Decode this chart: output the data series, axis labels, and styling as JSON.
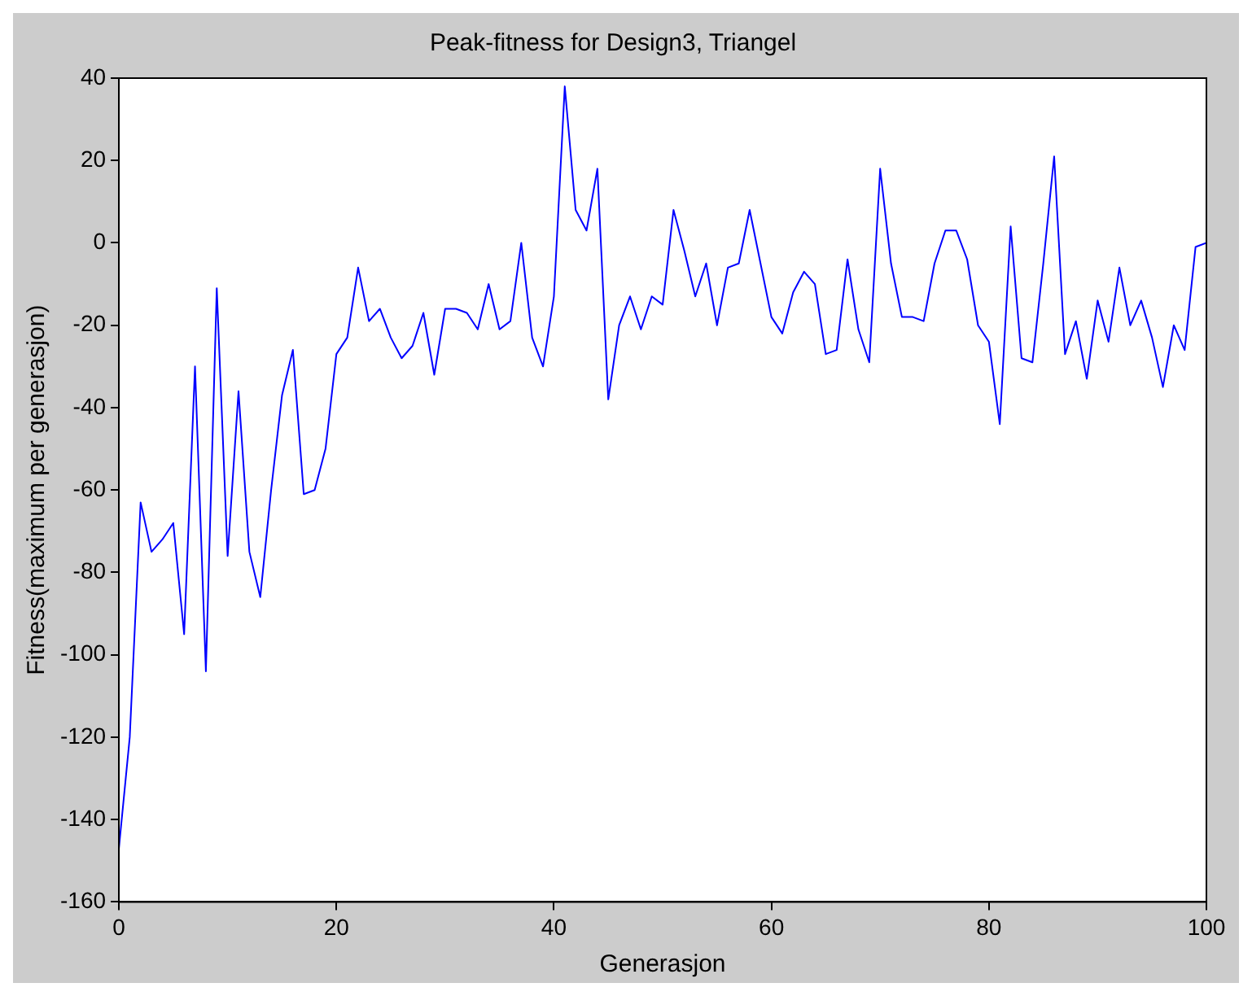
{
  "chart_data": {
    "type": "line",
    "title": "Peak-fitness for Design3, Triangel",
    "xlabel": "Generasjon",
    "ylabel": "Fitness(maximum per generasjon)",
    "xlim": [
      0,
      100
    ],
    "xticks": [
      0,
      20,
      40,
      60,
      80,
      100
    ],
    "ylim": [
      -160,
      40
    ],
    "yticks": [
      -160,
      -140,
      -120,
      -100,
      -80,
      -60,
      -40,
      -20,
      0,
      20,
      40
    ],
    "grid": false,
    "legend": false,
    "marker": "none",
    "line_style": "solid",
    "x": [
      0,
      1,
      2,
      3,
      4,
      5,
      6,
      7,
      8,
      9,
      10,
      11,
      12,
      13,
      14,
      15,
      16,
      17,
      18,
      19,
      20,
      21,
      22,
      23,
      24,
      25,
      26,
      27,
      28,
      29,
      30,
      31,
      32,
      33,
      34,
      35,
      36,
      37,
      38,
      39,
      40,
      41,
      42,
      43,
      44,
      45,
      46,
      47,
      48,
      49,
      50,
      51,
      52,
      53,
      54,
      55,
      56,
      57,
      58,
      59,
      60,
      61,
      62,
      63,
      64,
      65,
      66,
      67,
      68,
      69,
      70,
      71,
      72,
      73,
      74,
      75,
      76,
      77,
      78,
      79,
      80,
      81,
      82,
      83,
      84,
      85,
      86,
      87,
      88,
      89,
      90,
      91,
      92,
      93,
      94,
      95,
      96,
      97,
      98,
      99,
      100
    ],
    "series": [
      {
        "color": "#0000ff",
        "values": [
          -147,
          -120,
          -63,
          -75,
          -72,
          -68,
          -95,
          -30,
          -104,
          -11,
          -76,
          -36,
          -75,
          -86,
          -60,
          -37,
          -26,
          -61,
          -60,
          -50,
          -27,
          -23,
          -6,
          -19,
          -16,
          -23,
          -28,
          -25,
          -17,
          -32,
          -16,
          -16,
          -17,
          -21,
          -10,
          -21,
          -19,
          0,
          -23,
          -30,
          -13,
          38,
          8,
          3,
          18,
          -38,
          -20,
          -13,
          -21,
          -13,
          -15,
          8,
          -2,
          -13,
          -5,
          -20,
          -6,
          -5,
          8,
          -5,
          -18,
          -22,
          -12,
          -7,
          -10,
          -27,
          -26,
          -4,
          -21,
          -29,
          18,
          -5,
          -18,
          -18,
          -19,
          -5,
          3,
          3,
          -4,
          -20,
          -24,
          -44,
          4,
          -28,
          -29,
          -5,
          21,
          -27,
          -19,
          -33,
          -14,
          -24,
          -6,
          -20,
          -14,
          -23,
          -35,
          -20,
          -26,
          -1,
          0
        ]
      }
    ]
  }
}
